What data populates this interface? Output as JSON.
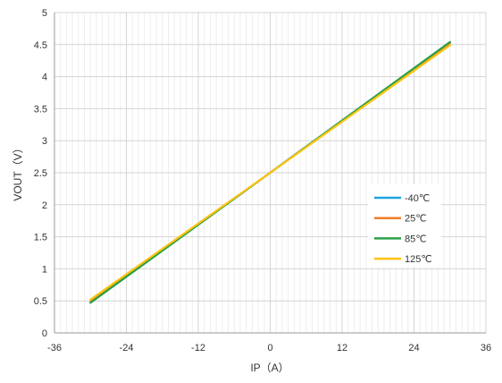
{
  "chart_data": {
    "type": "line",
    "title": "",
    "xlabel": "IP（A）",
    "ylabel": "VOUT（V）",
    "xlim": [
      -36,
      36
    ],
    "ylim": [
      0,
      5
    ],
    "x_ticks": [
      "-36",
      "-24",
      "-12",
      "0",
      "12",
      "24",
      "36"
    ],
    "y_ticks": [
      "0",
      "0.5",
      "1",
      "1.5",
      "2",
      "2.5",
      "3",
      "3.5",
      "4",
      "4.5",
      "5"
    ],
    "grid": true,
    "legend_position": "right",
    "series": [
      {
        "name": "-40℃",
        "color": "#1fa3e0",
        "x": [
          -30,
          0,
          30
        ],
        "y": [
          0.48,
          2.5,
          4.53
        ]
      },
      {
        "name": "25℃",
        "color": "#f07f2a",
        "x": [
          -30,
          0,
          30
        ],
        "y": [
          0.49,
          2.5,
          4.52
        ]
      },
      {
        "name": "85℃",
        "color": "#2aa047",
        "x": [
          -30,
          0,
          30
        ],
        "y": [
          0.47,
          2.5,
          4.54
        ]
      },
      {
        "name": "125℃",
        "color": "#ffc20e",
        "x": [
          -30,
          0,
          30
        ],
        "y": [
          0.52,
          2.5,
          4.49
        ]
      }
    ]
  }
}
